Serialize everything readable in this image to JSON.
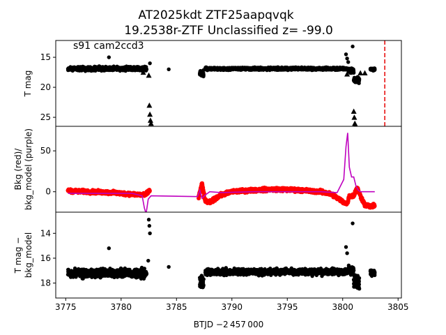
{
  "figure": {
    "title_line1": "AT2025kdt  ZTF25aapqvqk",
    "title_line2": "19.2538r-ZTF Unclassified z= -99.0",
    "xlabel": "BTJD −2 457 000"
  },
  "chart_data": [
    {
      "type": "scatter",
      "panel": "top",
      "annotation": "s91 cam2ccd3",
      "ylabel": "T mag",
      "ylim": [
        26.5,
        12.2
      ],
      "yticks": [
        15,
        20,
        25
      ],
      "xlim": [
        3774.1,
        3805.3
      ],
      "segments": [
        {
          "x0": 3775.2,
          "x1": 3782.3,
          "y": 16.9,
          "spread": 0.9
        },
        {
          "x0": 3787.1,
          "x1": 3787.45,
          "y": 17.7,
          "spread": 1.4
        },
        {
          "x0": 3787.6,
          "x1": 3800.4,
          "y": 16.9,
          "spread": 0.6
        },
        {
          "x0": 3800.5,
          "x1": 3801.0,
          "y": 17.2,
          "spread": 1.0
        },
        {
          "x0": 3801.0,
          "x1": 3801.5,
          "y": 18.8,
          "spread": 1.3
        },
        {
          "x0": 3802.5,
          "x1": 3802.9,
          "y": 17.0,
          "spread": 0.6
        }
      ],
      "points": [
        {
          "x": 3778.9,
          "y": 15.0
        },
        {
          "x": 3784.3,
          "y": 17.0
        },
        {
          "x": 3782.6,
          "y": 16.0
        },
        {
          "x": 3800.3,
          "y": 14.5
        },
        {
          "x": 3800.4,
          "y": 15.2
        },
        {
          "x": 3800.5,
          "y": 15.8
        },
        {
          "x": 3800.9,
          "y": 13.2
        }
      ],
      "upper_limits": [
        {
          "x": 3782.5,
          "y": 18.0
        },
        {
          "x": 3782.55,
          "y": 23.0
        },
        {
          "x": 3782.6,
          "y": 24.5
        },
        {
          "x": 3782.65,
          "y": 25.5
        },
        {
          "x": 3782.7,
          "y": 26.0
        },
        {
          "x": 3782.0,
          "y": 17.5
        },
        {
          "x": 3787.3,
          "y": 17.5
        },
        {
          "x": 3800.4,
          "y": 17.8
        },
        {
          "x": 3801.0,
          "y": 24.0
        },
        {
          "x": 3801.05,
          "y": 25.0
        },
        {
          "x": 3801.1,
          "y": 26.0
        },
        {
          "x": 3801.15,
          "y": 26.3
        },
        {
          "x": 3801.6,
          "y": 17.6
        },
        {
          "x": 3802.0,
          "y": 17.6
        }
      ],
      "vline": {
        "x": 3803.8,
        "color": "#e50000",
        "style": "dashed"
      }
    },
    {
      "type": "line",
      "panel": "middle",
      "ylabel": "Bkg (red)/\nbkg_model (purple)",
      "ylim": [
        -25,
        80
      ],
      "yticks": [
        0,
        50
      ],
      "xlim": [
        3774.1,
        3805.3
      ],
      "series": [
        {
          "role": "bkg",
          "color": "#ff0000",
          "x": [
            3775.2,
            3777.0,
            3779.0,
            3781.0,
            3782.2,
            3782.6,
            3787.0,
            3787.3,
            3787.6,
            3788.0,
            3789.0,
            3790.0,
            3792.0,
            3794.0,
            3796.0,
            3798.0,
            3799.0,
            3800.0,
            3800.4,
            3800.6,
            3801.0,
            3801.3,
            3801.6,
            3802.0,
            3802.5,
            3802.9
          ],
          "y": [
            1,
            0,
            -1,
            -3,
            -4,
            2,
            -7,
            10,
            -12,
            -13,
            -4,
            0,
            2,
            3,
            2,
            0,
            -3,
            -12,
            -15,
            -5,
            -5,
            5,
            -5,
            -16,
            -18,
            -17
          ]
        },
        {
          "role": "bkg_model",
          "color": "#bf00bf",
          "x": [
            3775.2,
            3777.0,
            3779.0,
            3781.0,
            3781.9,
            3782.1,
            3782.25,
            3782.35,
            3782.45,
            3782.7,
            3786.9,
            3787.1,
            3787.3,
            3787.6,
            3788.0,
            3789.0,
            3792.0,
            3795.0,
            3798.0,
            3799.5,
            3800.1,
            3800.3,
            3800.45,
            3800.6,
            3800.8,
            3801.0,
            3801.2,
            3801.4,
            3801.6,
            3801.8,
            3802.0,
            3802.5,
            3802.9
          ],
          "y": [
            -2,
            -2,
            -2,
            -2,
            -5,
            -20,
            -27,
            -18,
            -9,
            -5,
            -6,
            2,
            -8,
            -4,
            0,
            -1,
            0,
            0,
            0,
            -1,
            15,
            55,
            72,
            30,
            18,
            18,
            7,
            2,
            0,
            0,
            0,
            0,
            0
          ]
        }
      ]
    },
    {
      "type": "scatter",
      "panel": "bottom",
      "ylabel": "T mag −\nbkg_model",
      "ylim": [
        19.2,
        12.3
      ],
      "yticks": [
        14,
        16,
        18
      ],
      "xlim": [
        3774.1,
        3805.3
      ],
      "xticks": [
        3775,
        3780,
        3785,
        3790,
        3795,
        3800,
        3805
      ],
      "segments": [
        {
          "x0": 3775.2,
          "x1": 3782.3,
          "y": 17.2,
          "spread": 1.0
        },
        {
          "x0": 3787.1,
          "x1": 3787.45,
          "y": 17.9,
          "spread": 1.5
        },
        {
          "x0": 3787.6,
          "x1": 3800.4,
          "y": 17.1,
          "spread": 0.7
        },
        {
          "x0": 3800.5,
          "x1": 3801.0,
          "y": 17.0,
          "spread": 1.0
        },
        {
          "x0": 3801.0,
          "x1": 3801.5,
          "y": 17.9,
          "spread": 1.4
        },
        {
          "x0": 3802.5,
          "x1": 3802.9,
          "y": 17.2,
          "spread": 0.6
        }
      ],
      "points": [
        {
          "x": 3778.9,
          "y": 15.2
        },
        {
          "x": 3784.3,
          "y": 16.7
        },
        {
          "x": 3782.5,
          "y": 12.9
        },
        {
          "x": 3782.55,
          "y": 13.4
        },
        {
          "x": 3782.6,
          "y": 14.0
        },
        {
          "x": 3782.45,
          "y": 16.2
        },
        {
          "x": 3800.9,
          "y": 13.2
        },
        {
          "x": 3800.3,
          "y": 15.1
        },
        {
          "x": 3800.4,
          "y": 15.6
        }
      ]
    }
  ]
}
